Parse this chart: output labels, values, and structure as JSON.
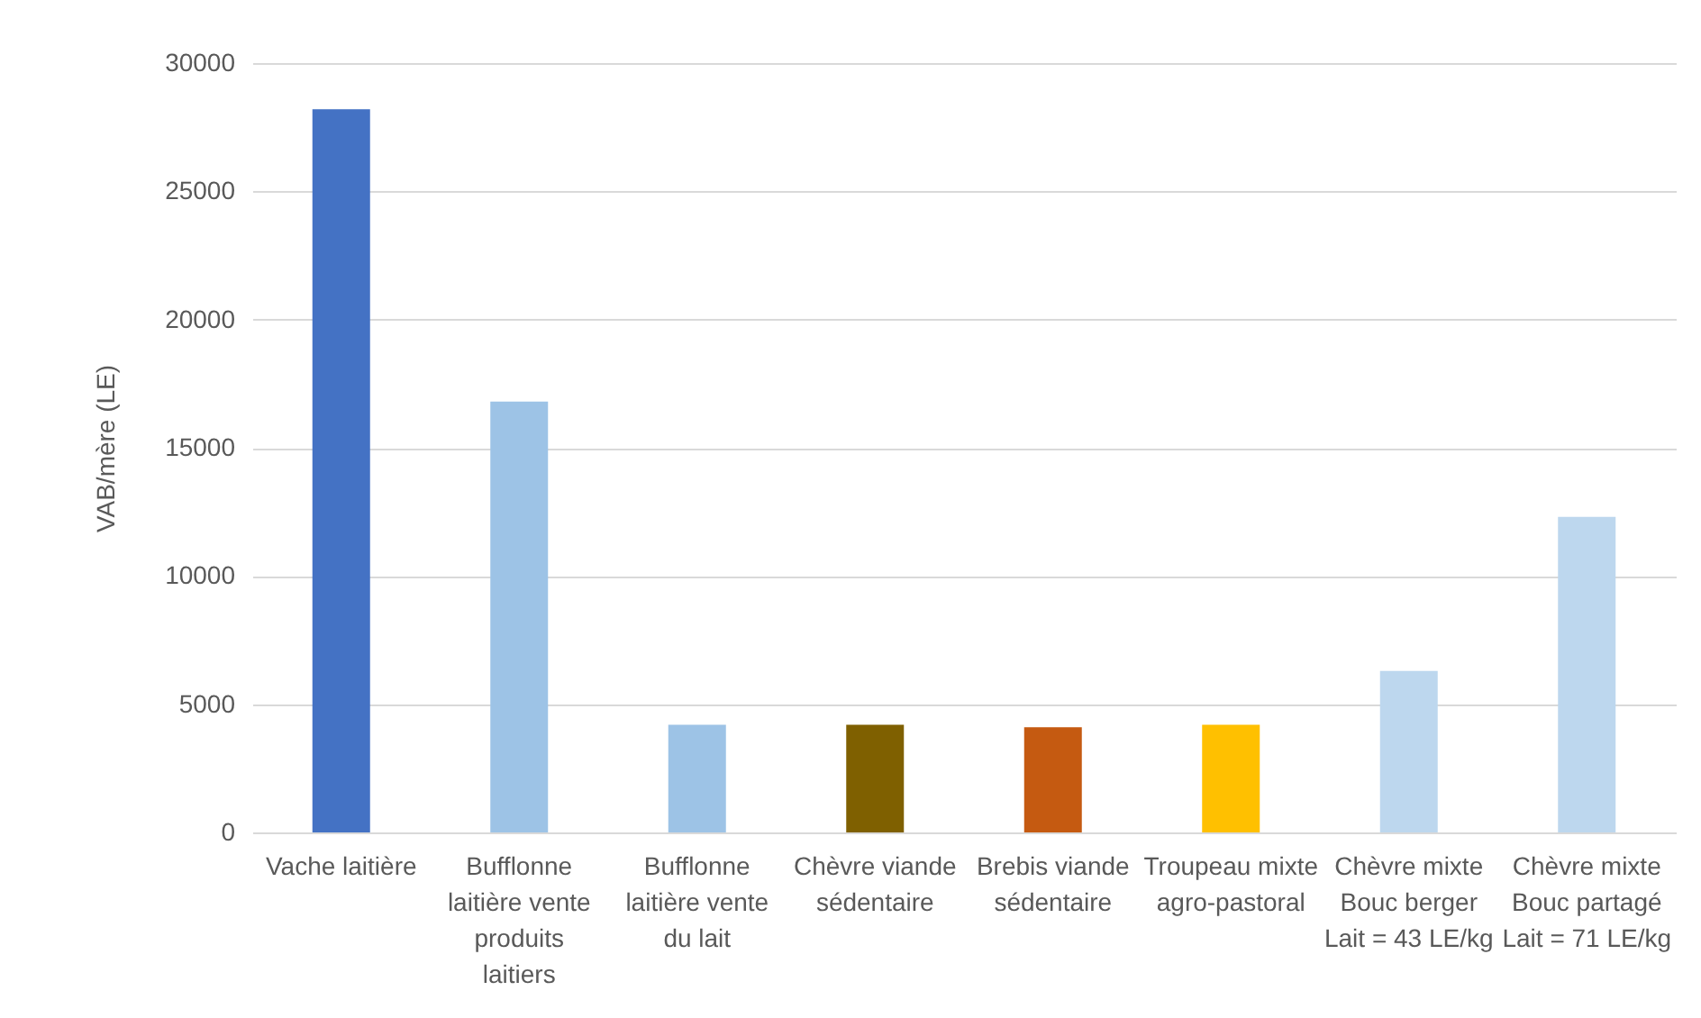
{
  "chart_data": {
    "type": "bar",
    "ylabel": "VAB/mère (LE)",
    "categories": [
      "Vache laitière",
      "Bufflonne laitière vente produits laitiers",
      "Bufflonne laitière vente du lait",
      "Chèvre viande sédentaire",
      "Brebis viande sédentaire",
      "Troupeau mixte agro-pastoral",
      "Chèvre mixte Bouc berger Lait = 43 LE/kg",
      "Chèvre mixte Bouc partagé Lait = 71 LE/kg"
    ],
    "values": [
      28200,
      16800,
      4200,
      4200,
      4100,
      4200,
      6300,
      12300
    ],
    "colors": [
      "#4472c4",
      "#9dc3e6",
      "#9dc3e6",
      "#7f6000",
      "#c55a11",
      "#ffc000",
      "#bdd7ee",
      "#bdd7ee"
    ],
    "ylim": [
      0,
      30000
    ],
    "yticks": [
      0,
      5000,
      10000,
      15000,
      20000,
      25000,
      30000
    ],
    "grid": "y"
  }
}
